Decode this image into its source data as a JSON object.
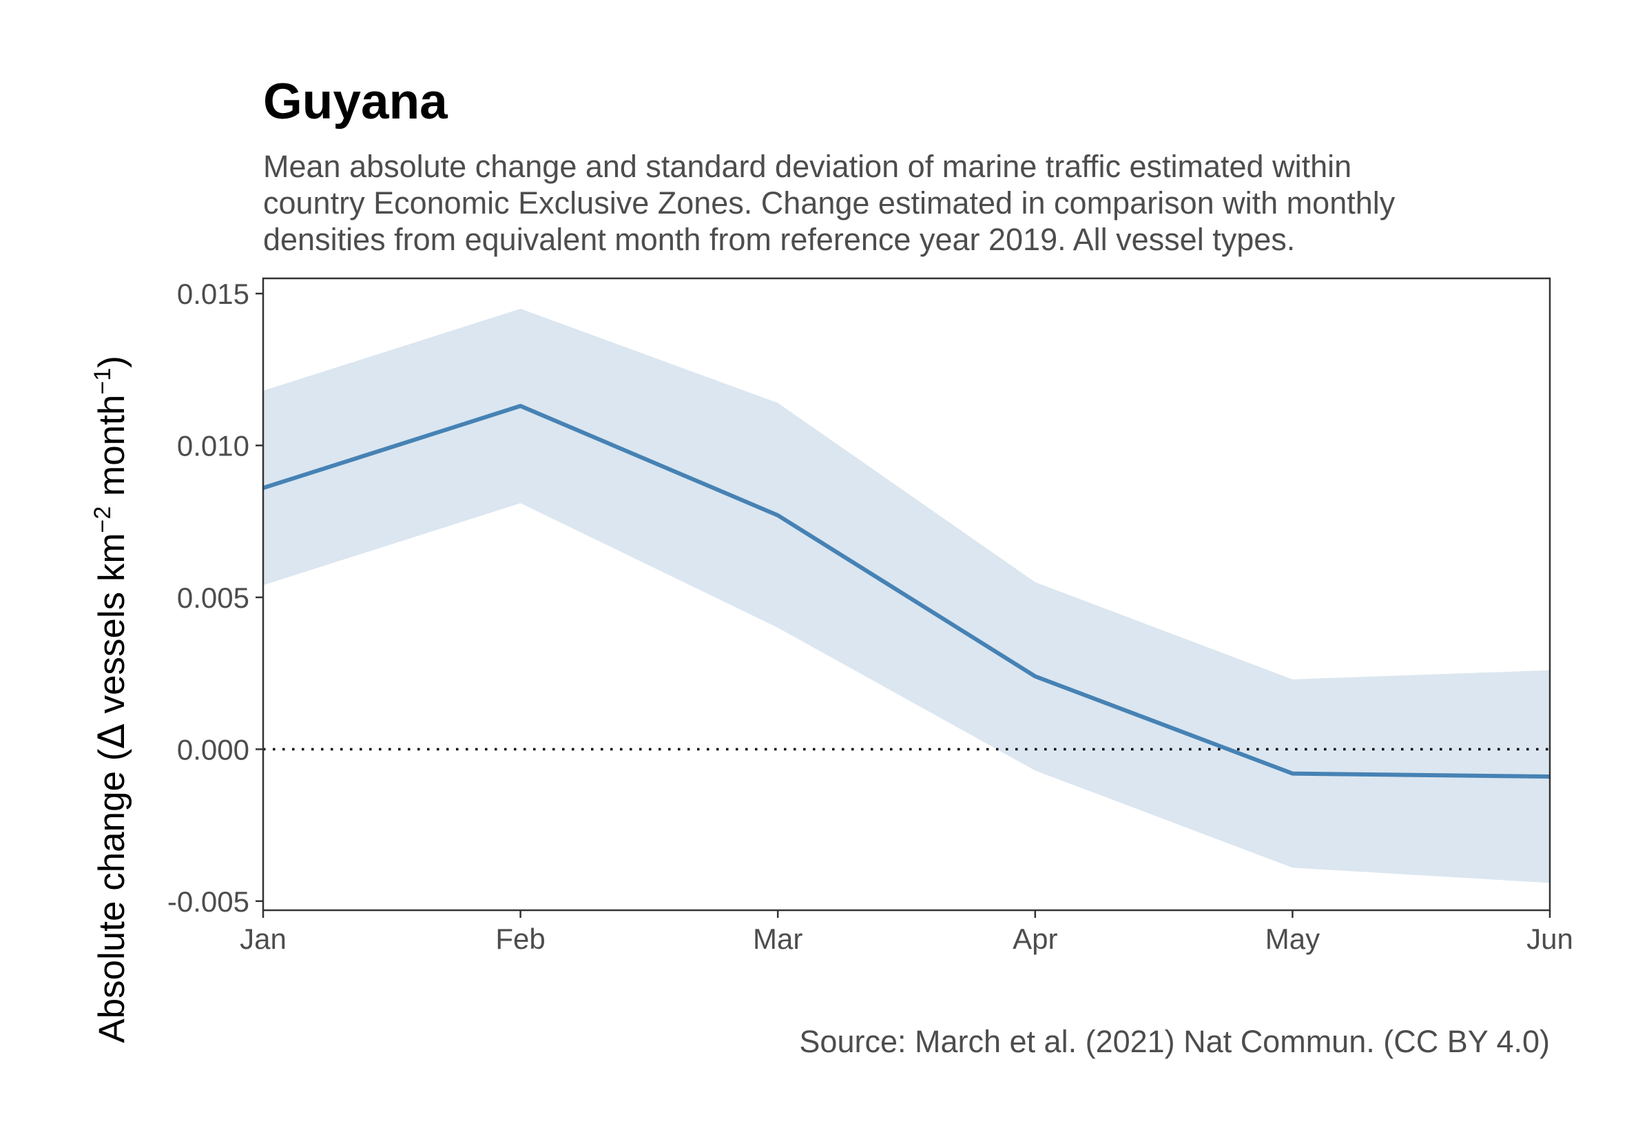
{
  "chart_data": {
    "type": "line",
    "title": "Guyana",
    "subtitle": [
      "Mean absolute change and standard deviation of marine traffic estimated within",
      "country Economic Exclusive Zones. Change estimated in comparison with monthly",
      "densities from equivalent month from reference year 2019. All vessel types."
    ],
    "caption": "Source: March et al. (2021) Nat Commun. (CC BY 4.0)",
    "ylabel": {
      "prefix": "Absolute change (",
      "delta": "Δ",
      "units": " vessels km",
      "exp1": "−2",
      "mid": " month",
      "exp2": "−1",
      "suffix": ")"
    },
    "categories": [
      "Jan",
      "Feb",
      "Mar",
      "Apr",
      "May",
      "Jun"
    ],
    "series": [
      {
        "values": [
          0.0086,
          0.0113,
          0.0077,
          0.0024,
          -0.0008,
          -0.0009
        ],
        "lower": [
          0.0054,
          0.0081,
          0.004,
          -0.0007,
          -0.0039,
          -0.0044
        ],
        "upper": [
          0.0118,
          0.0145,
          0.0114,
          0.0055,
          0.0023,
          0.0026
        ],
        "color": "#4682b4",
        "band_color": "#dbe6f0"
      }
    ],
    "ylim": [
      -0.0053,
      0.0155
    ],
    "yticks": [
      -0.005,
      0.0,
      0.005,
      0.01,
      0.015
    ],
    "ytick_labels": [
      "-0.005",
      "0.000",
      "0.005",
      "0.010",
      "0.015"
    ],
    "reference_line": {
      "y": 0,
      "style": "dotted"
    },
    "grid": false,
    "legend": "none"
  }
}
